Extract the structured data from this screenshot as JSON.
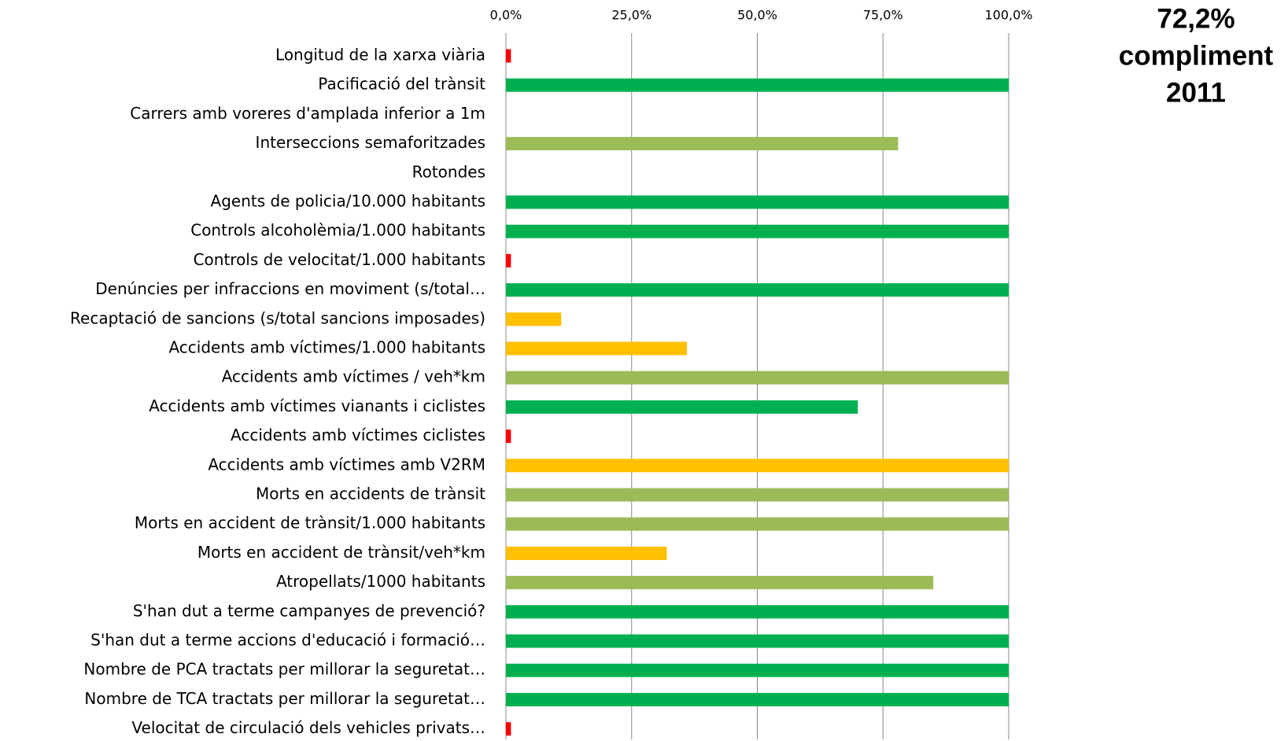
{
  "chart_data": {
    "type": "barh",
    "categories": [
      "Longitud de la xarxa viària",
      "Pacificació del trànsit",
      "Carrers amb voreres d'amplada inferior a 1m",
      "Interseccions semaforitzades",
      "Rotondes",
      "Agents de policia/10.000 habitants",
      "Controls alcoholèmia/1.000 habitants",
      "Controls de velocitat/1.000 habitants",
      "Denúncies per infraccions en moviment (s/total…",
      "Recaptació de sancions (s/total sancions imposades)",
      "Accidents amb víctimes/1.000 habitants",
      "Accidents amb víctimes / veh*km",
      "Accidents amb víctimes vianants i ciclistes",
      "Accidents amb víctimes ciclistes",
      "Accidents amb víctimes amb V2RM",
      "Morts en accidents de trànsit",
      "Morts en accident de trànsit/1.000 habitants",
      "Morts en accident de trànsit/veh*km",
      "Atropellats/1000 habitants",
      "S'han dut a terme campanyes de prevenció?",
      "S'han dut a terme accions d'educació i formació…",
      "Nombre de PCA tractats per millorar la seguretat…",
      "Nombre de TCA tractats per millorar la seguretat…",
      "Velocitat de circulació dels vehicles privats…"
    ],
    "values": [
      1,
      100,
      0,
      78,
      0,
      100,
      100,
      1,
      100,
      11,
      36,
      100,
      70,
      1,
      100,
      100,
      100,
      32,
      85,
      100,
      100,
      100,
      100,
      1
    ],
    "colors": [
      "#ff0000",
      "#00b050",
      "#00b050",
      "#9bbb59",
      "#00b050",
      "#00b050",
      "#00b050",
      "#ff0000",
      "#00b050",
      "#ffc000",
      "#ffc000",
      "#9bbb59",
      "#00b050",
      "#ff0000",
      "#ffc000",
      "#9bbb59",
      "#9bbb59",
      "#ffc000",
      "#9bbb59",
      "#00b050",
      "#00b050",
      "#00b050",
      "#00b050",
      "#ff0000"
    ],
    "xlim": [
      0,
      100
    ],
    "xticks": [
      {
        "value": 0,
        "label": "0,0%"
      },
      {
        "value": 25,
        "label": "25,0%"
      },
      {
        "value": 50,
        "label": "50,0%"
      },
      {
        "value": 75,
        "label": "75,0%"
      },
      {
        "value": 100,
        "label": "100,0%"
      }
    ],
    "grid": true,
    "annotation": [
      "72,2%",
      "compliment",
      "2011"
    ]
  }
}
